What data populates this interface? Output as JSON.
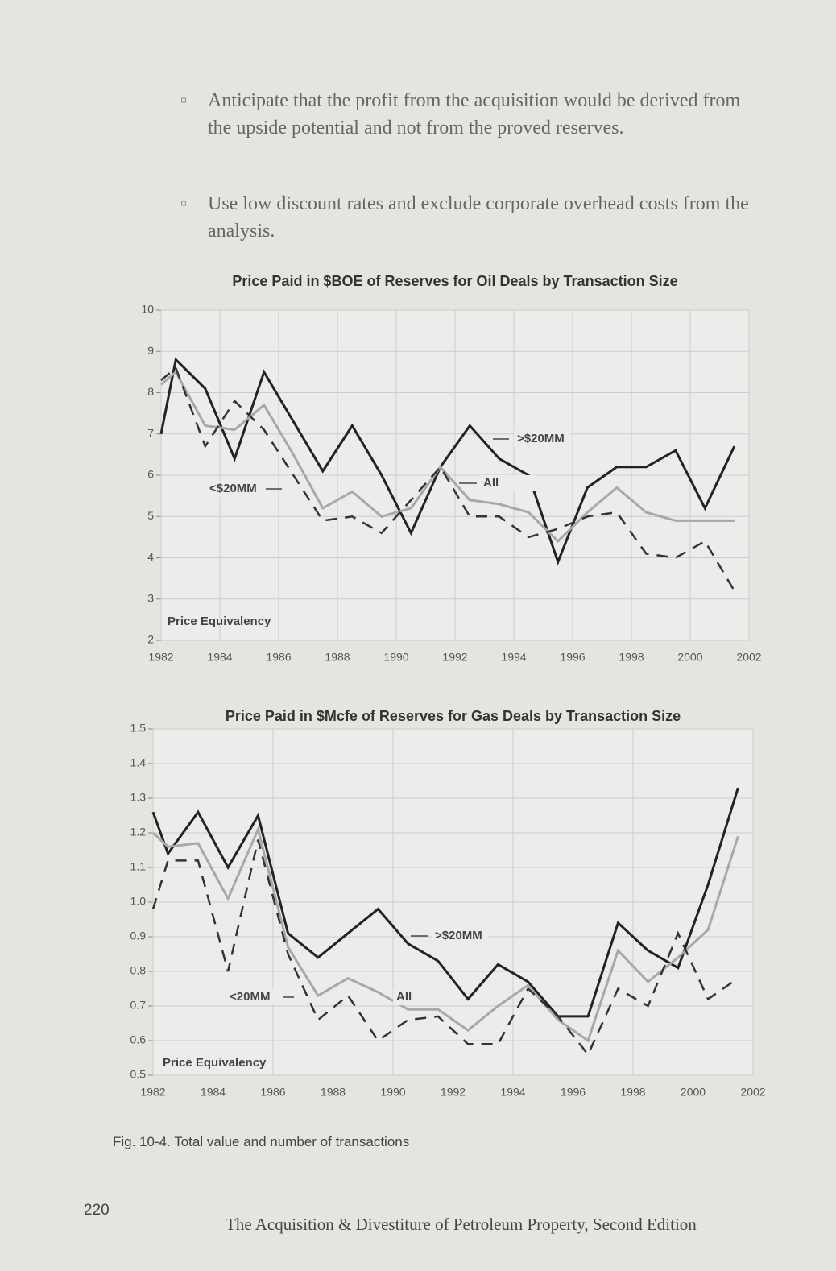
{
  "bullets": [
    "Anticipate that the profit from the acquisition would be derived from the upside potential and not from the proved reserves.",
    "Use low discount rates and exclude corporate overhead costs from the analysis."
  ],
  "chart_data": [
    {
      "type": "line",
      "title": "Price Paid in $BOE of Reserves for Oil Deals by Transaction Size",
      "note": "Price Equivalency",
      "x": [
        1982,
        1982.5,
        1983.5,
        1984.5,
        1985.5,
        1986.5,
        1987.5,
        1988.5,
        1989.5,
        1990.5,
        1991.5,
        1992.5,
        1993.5,
        1994.5,
        1995.5,
        1996.5,
        1997.5,
        1998.5,
        1999.5,
        2000.5,
        2001.5
      ],
      "series": [
        {
          "name": ">$20MM",
          "color": "#222222",
          "dash": false,
          "values": [
            7.0,
            8.8,
            8.1,
            6.4,
            8.5,
            7.3,
            6.1,
            7.2,
            6.0,
            4.6,
            6.2,
            7.2,
            6.4,
            6.0,
            3.9,
            5.7,
            6.2,
            6.2,
            6.6,
            5.2,
            6.7
          ]
        },
        {
          "name": "All",
          "color": "#a8a8a8",
          "dash": false,
          "values": [
            8.2,
            8.5,
            7.2,
            7.1,
            7.7,
            6.5,
            5.2,
            5.6,
            5.0,
            5.2,
            6.2,
            5.4,
            5.3,
            5.1,
            4.4,
            5.1,
            5.7,
            5.1,
            4.9,
            4.9,
            4.9
          ]
        },
        {
          "name": "<$20MM",
          "color": "#333333",
          "dash": true,
          "values": [
            8.3,
            8.6,
            6.7,
            7.8,
            7.1,
            6.0,
            4.9,
            5.0,
            4.6,
            5.4,
            6.2,
            5.0,
            5.0,
            4.5,
            4.7,
            5.0,
            5.1,
            4.1,
            4.0,
            4.4,
            3.2
          ]
        }
      ],
      "xlim": [
        1982,
        2002
      ],
      "xticks": [
        1982,
        1984,
        1986,
        1988,
        1990,
        1992,
        1994,
        1996,
        1998,
        2000,
        2002
      ],
      "ylim": [
        2,
        10
      ],
      "yticks": [
        2,
        3,
        4,
        5,
        6,
        7,
        8,
        9,
        10
      ],
      "grid": true
    },
    {
      "type": "line",
      "title": "Price Paid in $Mcfe of Reserves for Gas Deals by Transaction Size",
      "note": "Price Equivalency",
      "x": [
        1982,
        1982.5,
        1983.5,
        1984.5,
        1985.5,
        1986.5,
        1987.5,
        1988.5,
        1989.5,
        1990.5,
        1991.5,
        1992.5,
        1993.5,
        1994.5,
        1995.5,
        1996.5,
        1997.5,
        1998.5,
        1999.5,
        2000.5,
        2001.5
      ],
      "series": [
        {
          "name": ">$20MM",
          "color": "#222222",
          "dash": false,
          "values": [
            1.26,
            1.14,
            1.26,
            1.1,
            1.25,
            0.91,
            0.84,
            0.91,
            0.98,
            0.88,
            0.83,
            0.72,
            0.82,
            0.77,
            0.67,
            0.67,
            0.94,
            0.86,
            0.81,
            1.05,
            1.33
          ]
        },
        {
          "name": "All",
          "color": "#a8a8a8",
          "dash": false,
          "values": [
            1.2,
            1.16,
            1.17,
            1.01,
            1.21,
            0.87,
            0.73,
            0.78,
            0.74,
            0.69,
            0.69,
            0.63,
            0.7,
            0.76,
            0.66,
            0.6,
            0.86,
            0.77,
            0.84,
            0.92,
            1.19
          ]
        },
        {
          "name": "<20MM",
          "color": "#333333",
          "dash": true,
          "values": [
            0.98,
            1.12,
            1.12,
            0.8,
            1.18,
            0.85,
            0.66,
            0.73,
            0.6,
            0.66,
            0.67,
            0.59,
            0.59,
            0.75,
            0.67,
            0.56,
            0.75,
            0.7,
            0.91,
            0.72,
            0.78
          ]
        }
      ],
      "xlim": [
        1982,
        2002
      ],
      "xticks": [
        1982,
        1984,
        1986,
        1988,
        1990,
        1992,
        1994,
        1996,
        1998,
        2000,
        2002
      ],
      "ylim": [
        0.5,
        1.5
      ],
      "yticks": [
        0.5,
        0.6,
        0.7,
        0.8,
        0.9,
        {
          "value": 1,
          "label": "1.0"
        },
        1.1,
        1.2,
        1.3,
        1.4,
        {
          "value": 1.5,
          "label": "1.5"
        }
      ],
      "grid": true
    }
  ],
  "caption": "Fig. 10-4. Total value and number of transactions",
  "page_number": "220",
  "footer": "The Acquisition & Divestiture of Petroleum Property, Second Edition"
}
